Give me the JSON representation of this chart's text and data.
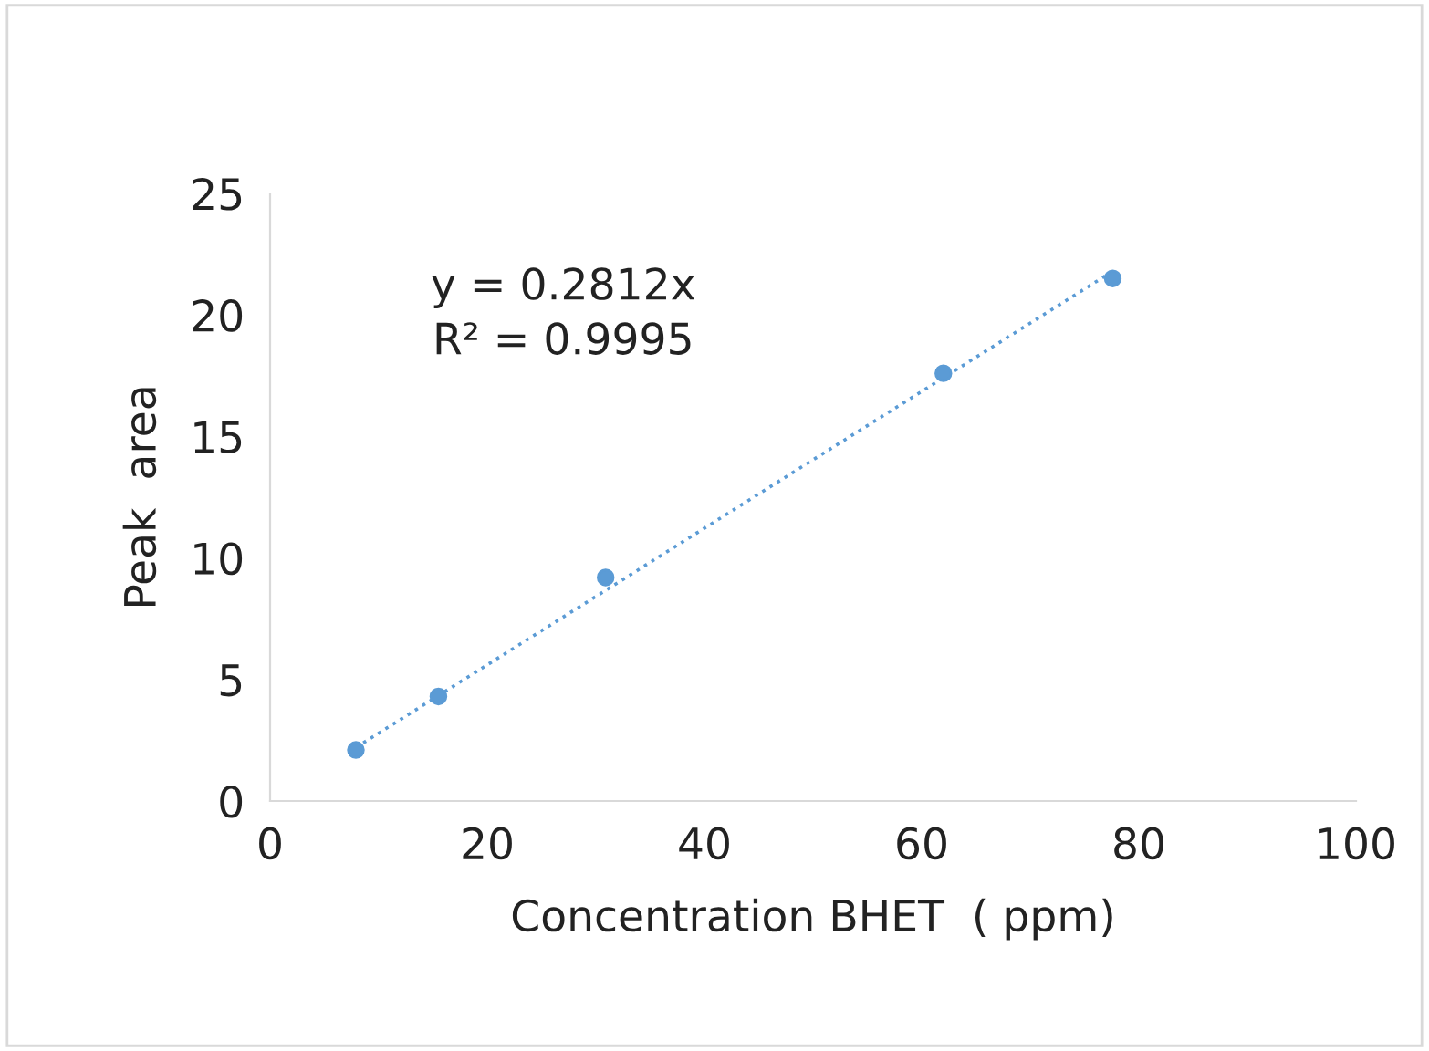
{
  "chart_data": {
    "type": "scatter",
    "xlabel": "Concentration BHET  ( ppm)",
    "ylabel": "Peak  area",
    "series": [
      {
        "color": "#5b9bd5",
        "x": [
          7.9,
          15.5,
          30.9,
          62.0,
          77.6
        ],
        "values": [
          2.1,
          4.3,
          9.2,
          17.6,
          21.5
        ],
        "marker": "circle"
      },
      {
        "type": "line",
        "color": "#5b9bd5",
        "x": [
          7.9,
          77.6
        ],
        "values": [
          2.2,
          21.8
        ],
        "line_style": "dotted",
        "marker": "none"
      }
    ],
    "annotations": [
      "y = 0.2812x\nR² = 0.9995"
    ],
    "xlim": [
      0,
      100
    ],
    "xticks": [
      0,
      20,
      40,
      60,
      80,
      100
    ],
    "ylim": [
      0,
      25
    ],
    "yticks": [
      0,
      5,
      10,
      15,
      20,
      25
    ],
    "grid": false,
    "legend": false
  }
}
